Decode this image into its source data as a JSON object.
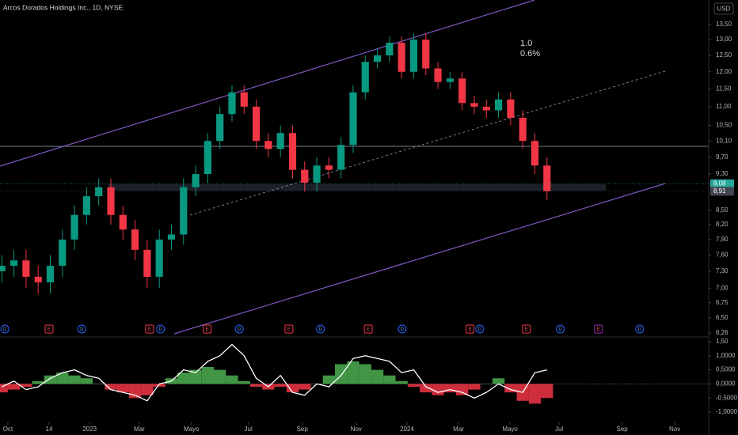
{
  "chart_data": [
    {
      "type": "candlestick",
      "title": "Arcos Dorados Holdings Inc., 1D, NYSE",
      "currency": "USD",
      "annotations": [
        "1.0",
        "0.6%"
      ],
      "x": [
        -1,
        1,
        3,
        5,
        7,
        9,
        11,
        13,
        15,
        17,
        19,
        21,
        23,
        25,
        27,
        29,
        31,
        33,
        35,
        37,
        39,
        41,
        43,
        45,
        47,
        49,
        51,
        53,
        55,
        57,
        59,
        61,
        63,
        65,
        67,
        69,
        71,
        73,
        75,
        77,
        79,
        81,
        83,
        85,
        87,
        89
      ],
      "open": [
        7.3,
        7.4,
        7.5,
        7.2,
        7.1,
        7.4,
        7.9,
        8.4,
        8.8,
        9.0,
        8.4,
        8.1,
        7.7,
        7.2,
        7.9,
        8.0,
        9.0,
        9.3,
        10.1,
        10.8,
        11.4,
        11.0,
        10.1,
        9.9,
        10.3,
        9.4,
        9.1,
        9.5,
        9.4,
        10.0,
        11.4,
        12.3,
        12.5,
        12.9,
        12.0,
        13.0,
        12.1,
        11.7,
        11.8,
        11.1,
        11.0,
        10.9,
        11.2,
        10.7,
        10.1,
        9.5
      ],
      "high": [
        7.6,
        7.7,
        7.7,
        7.4,
        7.6,
        8.1,
        8.6,
        9.0,
        9.2,
        9.2,
        8.6,
        8.3,
        7.9,
        8.1,
        8.2,
        9.2,
        9.5,
        10.3,
        11.0,
        11.6,
        11.6,
        11.2,
        10.3,
        10.5,
        10.5,
        9.6,
        9.7,
        9.7,
        10.2,
        11.6,
        12.5,
        12.7,
        13.1,
        13.1,
        13.2,
        13.2,
        12.3,
        12.0,
        12.0,
        11.3,
        11.2,
        11.4,
        11.4,
        10.9,
        10.3,
        9.7
      ],
      "low": [
        7.1,
        7.2,
        7.0,
        6.9,
        6.9,
        7.2,
        7.7,
        8.2,
        8.6,
        8.2,
        7.9,
        7.5,
        7.0,
        7.0,
        7.7,
        7.8,
        8.8,
        9.1,
        9.9,
        10.6,
        10.8,
        9.9,
        9.7,
        9.7,
        9.2,
        8.9,
        8.9,
        9.2,
        9.2,
        9.8,
        11.2,
        12.1,
        12.3,
        11.8,
        11.8,
        11.9,
        11.5,
        11.5,
        10.9,
        10.8,
        10.7,
        10.7,
        10.5,
        9.9,
        9.3,
        8.71
      ],
      "close": [
        7.4,
        7.5,
        7.2,
        7.1,
        7.4,
        7.9,
        8.4,
        8.8,
        9.0,
        8.4,
        8.1,
        7.7,
        7.2,
        7.9,
        8.0,
        9.0,
        9.3,
        10.1,
        10.8,
        11.4,
        11.0,
        10.1,
        9.9,
        10.3,
        9.4,
        9.1,
        9.5,
        9.4,
        10.0,
        11.4,
        12.3,
        12.5,
        12.9,
        12.0,
        13.0,
        12.1,
        11.7,
        11.8,
        11.1,
        11.0,
        10.9,
        11.2,
        10.7,
        10.1,
        9.5,
        8.91
      ],
      "up_color": "#089981",
      "down_color": "#f23645",
      "log_scale": true,
      "xlim": [
        -1.3,
        115.7
      ],
      "xticks": [
        {
          "value": 0.0,
          "label": "Oct"
        },
        {
          "value": 6.8,
          "label": "14"
        },
        {
          "value": 13.5,
          "label": "2023"
        },
        {
          "value": 21.7,
          "label": "Mar"
        },
        {
          "value": 30.3,
          "label": "Mayo"
        },
        {
          "value": 39.7,
          "label": "Jul"
        },
        {
          "value": 48.6,
          "label": "Sep"
        },
        {
          "value": 57.5,
          "label": "Nov"
        },
        {
          "value": 65.9,
          "label": "2024"
        },
        {
          "value": 74.4,
          "label": "Mar"
        },
        {
          "value": 82.9,
          "label": "Mayo"
        },
        {
          "value": 91.0,
          "label": "Jul"
        },
        {
          "value": 101.4,
          "label": "Sep"
        },
        {
          "value": 110.1,
          "label": "Nov"
        }
      ],
      "ylim": [
        6.21,
        14.35
      ],
      "yticks": [
        {
          "value": 13.5,
          "label": "13,50"
        },
        {
          "value": 13,
          "label": "13,00"
        },
        {
          "value": 12.5,
          "label": "12,50"
        },
        {
          "value": 12,
          "label": "12,00"
        },
        {
          "value": 11.5,
          "label": "11,50"
        },
        {
          "value": 11,
          "label": "11,00"
        },
        {
          "value": 10.5,
          "label": "10,50"
        },
        {
          "value": 10.1,
          "label": "10,10"
        },
        {
          "value": 9.7,
          "label": "9,70"
        },
        {
          "value": 9.3,
          "label": "9,30"
        },
        {
          "value": 8.5,
          "label": "8,50"
        },
        {
          "value": 8.2,
          "label": "8,20"
        },
        {
          "value": 7.9,
          "label": "7,90"
        },
        {
          "value": 7.6,
          "label": "7,60"
        },
        {
          "value": 7.3,
          "label": "7,30"
        },
        {
          "value": 7,
          "label": "7,00"
        },
        {
          "value": 6.75,
          "label": "6,75"
        },
        {
          "value": 6.5,
          "label": "6,50"
        },
        {
          "value": 6.26,
          "label": "6,26"
        }
      ],
      "price_labels": [
        {
          "value": 9.08,
          "label": "9,08",
          "color": "#26a69a"
        },
        {
          "value": 8.91,
          "label": "8,91",
          "color": "#434651"
        }
      ],
      "events": [
        {
          "x": -0.5,
          "label": "D"
        },
        {
          "x": 6.8,
          "label": "E"
        },
        {
          "x": 12.2,
          "label": "D"
        },
        {
          "x": 23.4,
          "label": "E"
        },
        {
          "x": 25.2,
          "label": "D"
        },
        {
          "x": 32.9,
          "label": "E"
        },
        {
          "x": 38.2,
          "label": "D"
        },
        {
          "x": 46.4,
          "label": "E"
        },
        {
          "x": 51.6,
          "label": "D"
        },
        {
          "x": 59.5,
          "label": "E"
        },
        {
          "x": 65.1,
          "label": "D"
        },
        {
          "x": 76.3,
          "label": "E"
        },
        {
          "x": 77.9,
          "label": "D"
        },
        {
          "x": 85.6,
          "label": "E"
        },
        {
          "x": 91.2,
          "label": "D"
        },
        {
          "x": 97.5,
          "label": "E"
        },
        {
          "x": 104.3,
          "label": "D"
        }
      ]
    },
    {
      "type": "line",
      "x": [
        -1,
        1,
        3,
        5,
        7,
        9,
        11,
        13,
        15,
        17,
        19,
        21,
        23,
        25,
        27,
        29,
        31,
        33,
        35,
        37,
        39,
        41,
        43,
        45,
        47,
        49,
        51,
        53,
        55,
        57,
        59,
        61,
        63,
        65,
        67,
        69,
        71,
        73,
        75,
        77,
        79,
        81,
        83,
        85,
        87,
        89
      ],
      "bars": {
        "values": [
          -0.3,
          -0.2,
          -0.1,
          0.1,
          0.3,
          0.4,
          0.3,
          0.2,
          0.0,
          -0.2,
          -0.3,
          -0.5,
          -0.4,
          -0.1,
          0.2,
          0.4,
          0.5,
          0.6,
          0.5,
          0.3,
          0.1,
          -0.1,
          -0.2,
          -0.1,
          -0.3,
          -0.2,
          0.0,
          0.3,
          0.7,
          0.8,
          0.7,
          0.5,
          0.3,
          0.1,
          -0.1,
          -0.3,
          -0.4,
          -0.3,
          -0.4,
          -0.2,
          0.0,
          0.2,
          -0.3,
          -0.6,
          -0.7,
          -0.5
        ],
        "up_color": "#4caf50",
        "down_color": "#f23645"
      },
      "series": [
        {
          "color": "#ffffff",
          "values": [
            -0.1,
            0.1,
            -0.2,
            -0.1,
            0.2,
            0.4,
            0.5,
            0.3,
            0.2,
            -0.2,
            -0.3,
            -0.4,
            -0.6,
            0.0,
            0.1,
            0.5,
            0.4,
            0.8,
            1.0,
            1.4,
            1.0,
            0.2,
            -0.1,
            0.3,
            -0.3,
            -0.4,
            0.0,
            -0.1,
            0.3,
            0.9,
            1.0,
            0.9,
            0.8,
            0.4,
            0.5,
            -0.1,
            -0.3,
            -0.2,
            -0.3,
            -0.5,
            -0.3,
            0.0,
            -0.2,
            -0.3,
            0.4,
            0.5
          ]
        }
      ],
      "xlim": [
        -1.3,
        115.7
      ],
      "ylim": [
        -1.306,
        1.61
      ],
      "yticks": [
        {
          "value": 1.5,
          "label": "1,50"
        },
        {
          "value": 1,
          "label": "1,0000"
        },
        {
          "value": 0.5,
          "label": "0,5000"
        },
        {
          "value": 0,
          "label": "0,0000"
        },
        {
          "value": -0.5,
          "label": "-0,5000"
        },
        {
          "value": -1,
          "label": "-1,0000"
        }
      ]
    }
  ]
}
